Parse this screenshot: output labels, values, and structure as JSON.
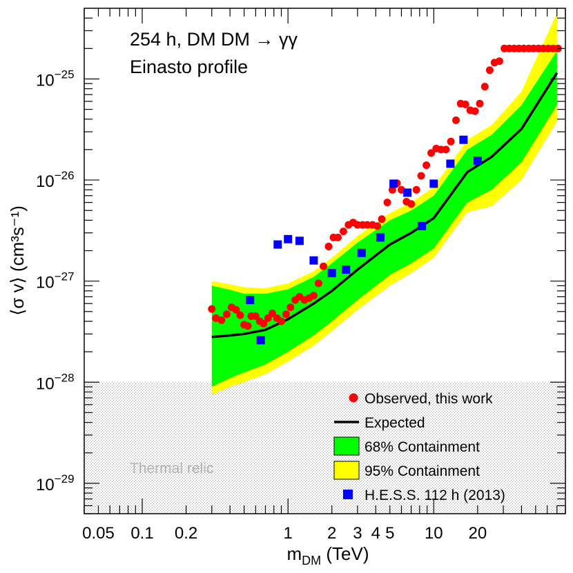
{
  "chart_data": {
    "type": "scatter",
    "title": "",
    "annotations": [
      "254 h, DM DM → γγ",
      "Einasto profile"
    ],
    "xlabel": "m",
    "xlabel_sub": "DM",
    "xlabel_unit": " (TeV)",
    "ylabel": "⟨σ v⟩ (cm³s⁻¹)",
    "x_scale": "log",
    "y_scale": "log",
    "xlim": [
      0.04,
      80
    ],
    "ylim": [
      5e-30,
      5e-25
    ],
    "x_tick_labels": [
      {
        "v": 0.05,
        "label": "0.05"
      },
      {
        "v": 0.1,
        "label": "0.1"
      },
      {
        "v": 0.2,
        "label": "0.2"
      },
      {
        "v": 1,
        "label": "1"
      },
      {
        "v": 2,
        "label": "2"
      },
      {
        "v": 3,
        "label": "3"
      },
      {
        "v": 4,
        "label": "4"
      },
      {
        "v": 5,
        "label": "5"
      },
      {
        "v": 10,
        "label": "10"
      },
      {
        "v": 20,
        "label": "20"
      }
    ],
    "y_tick_labels": [
      {
        "exp": -29,
        "base": "10",
        "sup": "−29"
      },
      {
        "exp": -28,
        "base": "10",
        "sup": "−28"
      },
      {
        "exp": -27,
        "base": "10",
        "sup": "−27"
      },
      {
        "exp": -26,
        "base": "10",
        "sup": "−26"
      },
      {
        "exp": -25,
        "base": "10",
        "sup": "−25"
      }
    ],
    "thermal_relic": {
      "label": "Thermal relic",
      "ymax": 1e-28
    },
    "legend": [
      {
        "key": "observed",
        "label": "Observed, this work",
        "color": "#ff0000",
        "marker": "circle"
      },
      {
        "key": "expected",
        "label": "Expected",
        "color": "#000000",
        "marker": "line"
      },
      {
        "key": "c68",
        "label": "68% Containment",
        "color": "#00ff00",
        "marker": "box"
      },
      {
        "key": "c95",
        "label": "95% Containment",
        "color": "#ffff00",
        "marker": "box"
      },
      {
        "key": "hess",
        "label": "H.E.S.S. 112 h (2013)",
        "color": "#0000ff",
        "marker": "square"
      }
    ],
    "legend_position": "bottom-right",
    "series": [
      {
        "name": "Expected",
        "color": "#000000",
        "x": [
          0.3,
          0.4,
          0.5,
          0.7,
          1.0,
          1.5,
          2.0,
          3.0,
          5.0,
          7.0,
          10.0,
          17.0,
          25.0,
          40.0,
          70.0
        ],
        "y": [
          2.8e-28,
          2.9e-28,
          3e-28,
          3.3e-28,
          4.2e-28,
          6e-28,
          8e-28,
          1.3e-27,
          2.3e-27,
          3e-27,
          4.2e-27,
          1.2e-26,
          1.7e-26,
          3.2e-26,
          1.15e-25
        ]
      },
      {
        "name": "68% Containment",
        "color": "#00ff00",
        "x": [
          0.3,
          0.4,
          0.5,
          0.7,
          1.0,
          1.5,
          2.0,
          3.0,
          5.0,
          7.0,
          10.0,
          17.0,
          25.0,
          40.0,
          70.0
        ],
        "y_low": [
          9e-29,
          1.1e-28,
          1.25e-28,
          1.5e-28,
          2e-28,
          2.9e-28,
          4e-28,
          6.5e-28,
          1.15e-27,
          1.5e-27,
          2.1e-27,
          6e-27,
          8e-27,
          1.5e-26,
          5.5e-26
        ],
        "y_high": [
          9e-28,
          8.2e-28,
          7.5e-28,
          7.5e-28,
          8.3e-28,
          1.1e-27,
          1.5e-27,
          2.4e-27,
          4e-27,
          5e-27,
          7e-27,
          2e-26,
          2.8e-26,
          5.5e-26,
          1.9e-25
        ]
      },
      {
        "name": "95% Containment",
        "color": "#ffff00",
        "x": [
          0.3,
          0.4,
          0.5,
          0.7,
          1.0,
          1.5,
          2.0,
          3.0,
          5.0,
          7.0,
          10.0,
          17.0,
          25.0,
          40.0,
          70.0
        ],
        "y_low": [
          7.5e-29,
          9e-29,
          1e-28,
          1.2e-28,
          1.6e-28,
          2.3e-28,
          3.2e-28,
          5.2e-28,
          9e-28,
          1.2e-27,
          1.7e-27,
          4.8e-27,
          5.5e-27,
          1e-26,
          3.8e-26
        ],
        "y_high": [
          1e-27,
          9.3e-28,
          8.7e-28,
          8.5e-28,
          9.5e-28,
          1.25e-27,
          1.7e-27,
          2.8e-27,
          4.7e-27,
          6e-27,
          8.5e-27,
          2.5e-26,
          3.5e-26,
          7.5e-26,
          4.5e-25
        ]
      },
      {
        "name": "Observed, this work",
        "color": "#ff0000",
        "x": [
          0.3,
          0.32,
          0.35,
          0.38,
          0.41,
          0.44,
          0.47,
          0.5,
          0.53,
          0.56,
          0.6,
          0.64,
          0.68,
          0.73,
          0.78,
          0.84,
          0.9,
          0.97,
          1.04,
          1.12,
          1.2,
          1.3,
          1.4,
          1.5,
          1.62,
          1.75,
          1.9,
          2.05,
          2.2,
          2.4,
          2.6,
          2.8,
          3.0,
          3.25,
          3.5,
          3.8,
          4.1,
          4.4,
          4.8,
          5.2,
          5.6,
          6.0,
          6.5,
          7.0,
          7.6,
          8.2,
          8.9,
          9.6,
          10.4,
          11.2,
          12.1,
          13.1,
          14.2,
          15.3,
          16.5,
          17.8,
          19.2,
          20.7,
          22.4,
          24.2,
          26.1,
          28.2,
          30.5,
          33.0,
          35.6,
          38.4,
          41.5,
          44.8,
          48.4,
          52.3,
          56.5,
          61.0,
          65.9,
          71.2
        ],
        "y": [
          5.3e-28,
          4.3e-28,
          4.1e-28,
          4.7e-28,
          5.5e-28,
          5.2e-28,
          4.6e-28,
          3.7e-28,
          3.6e-28,
          4.5e-28,
          4.5e-28,
          4e-28,
          3.8e-28,
          4.3e-28,
          4.8e-28,
          4.3e-28,
          4e-28,
          4.7e-28,
          5.5e-28,
          6.5e-28,
          7e-28,
          6.5e-28,
          6.8e-28,
          7.2e-28,
          9.5e-28,
          1.4e-27,
          2.2e-27,
          2.7e-27,
          2.7e-27,
          3.1e-27,
          3.6e-27,
          3.8e-27,
          3.6e-27,
          3.6e-27,
          3.6e-27,
          3.6e-27,
          3.5e-27,
          4.1e-27,
          6e-27,
          8e-27,
          9.3e-27,
          8e-27,
          6.1e-27,
          5.8e-27,
          8e-27,
          1.1e-26,
          1.4e-26,
          1.85e-26,
          2.05e-26,
          2e-26,
          2e-26,
          2.4e-26,
          3.9e-26,
          5.7e-26,
          5.6e-26,
          4.9e-26,
          4.8e-26,
          5.7e-26,
          8.4e-26,
          1.22e-25,
          1.45e-25,
          1.5e-25,
          2e-25,
          2e-25,
          2e-25,
          2e-25,
          2e-25,
          2e-25,
          2e-25,
          2e-25,
          2e-25,
          2e-25,
          2e-25,
          2e-25
        ]
      },
      {
        "name": "H.E.S.S. 112 h (2013)",
        "color": "#0000ff",
        "x": [
          0.55,
          0.65,
          0.85,
          1.0,
          1.2,
          1.5,
          2.0,
          2.5,
          3.2,
          4.3,
          5.3,
          6.6,
          8.3,
          10.0,
          13.0,
          16.0,
          20.0
        ],
        "y": [
          6.5e-28,
          2.6e-28,
          2.3e-27,
          2.6e-27,
          2.5e-27,
          1.6e-27,
          1.2e-27,
          1.3e-27,
          1.9e-27,
          2.7e-27,
          9.2e-27,
          7.5e-27,
          3.5e-27,
          9.2e-27,
          1.45e-26,
          2.5e-26,
          1.55e-26
        ]
      }
    ]
  }
}
